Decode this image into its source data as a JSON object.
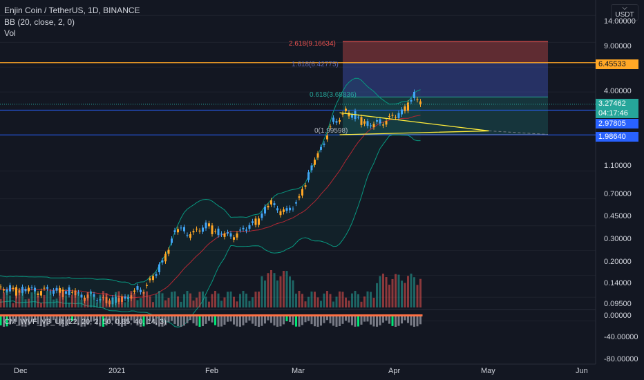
{
  "header": {
    "symbol_line": "Enjin Coin / TetherUS, 1D, BINANCE",
    "bb_line": "BB (20, close, 2, 0)",
    "vol_line": "Vol",
    "currency": "USDT"
  },
  "oscillator": {
    "label": "CM_WVF_V3_Ult (22, 20, 2, 50, 0.85, 40, 14, 3)"
  },
  "fib": {
    "level_2618": "2.618(9.16634)",
    "level_1618": "1.618(6.42775)",
    "level_0618": "0.618(3.68836)",
    "level_0": "0(1.99598)"
  },
  "price_axis": [
    "14.00000",
    "9.00000",
    "6.00000",
    "4.00000",
    "3.27462",
    "04:17:46",
    "2.97805",
    "1.98640",
    "1.10000",
    "0.70000",
    "0.45000",
    "0.30000",
    "0.20000",
    "0.14000",
    "0.09500",
    "0.00000",
    "-40.00000",
    "-80.00000"
  ],
  "price_tags": {
    "resistance": "6.45533",
    "current": "3.27462",
    "countdown": "04:17:46",
    "level_mid": "2.97805",
    "level_low": "1.98640"
  },
  "time_axis": [
    "Dec",
    "2021",
    "Feb",
    "Mar",
    "Apr",
    "May",
    "Jun"
  ],
  "colors": {
    "bg": "#131722",
    "bull": "#26a69a",
    "bear": "#ef5350",
    "bull_candle": "#42a5f5",
    "bear_candle": "#ffa726",
    "bb_band": "#089981",
    "bb_basis": "#b22833",
    "resistance": "#ffa726",
    "support": "#2962ff",
    "triangle": "#ffeb3b"
  },
  "chart_data": {
    "type": "candlestick",
    "title": "Enjin Coin / TetherUS, 1D, BINANCE",
    "scale": "log",
    "ylim": [
      0.085,
      20
    ],
    "x_range": [
      "2020-11-17",
      "2021-06-14"
    ],
    "series": [
      {
        "name": "ENJUSDT",
        "close_approx": [
          [
            "2020-11-20",
            0.16
          ],
          [
            "2020-12-15",
            0.155
          ],
          [
            "2021-01-01",
            0.13
          ],
          [
            "2021-01-10",
            0.16
          ],
          [
            "2021-01-15",
            0.22
          ],
          [
            "2021-01-18",
            0.3
          ],
          [
            "2021-01-20",
            0.42
          ],
          [
            "2021-01-26",
            0.4
          ],
          [
            "2021-01-31",
            0.45
          ],
          [
            "2021-02-05",
            0.38
          ],
          [
            "2021-02-10",
            0.4
          ],
          [
            "2021-02-16",
            0.5
          ],
          [
            "2021-02-20",
            0.65
          ],
          [
            "2021-02-25",
            0.55
          ],
          [
            "2021-03-01",
            0.7
          ],
          [
            "2021-03-04",
            1.0
          ],
          [
            "2021-03-08",
            1.6
          ],
          [
            "2021-03-12",
            2.4
          ],
          [
            "2021-03-16",
            2.9
          ],
          [
            "2021-03-20",
            2.6
          ],
          [
            "2021-03-25",
            2.3
          ],
          [
            "2021-03-30",
            2.6
          ],
          [
            "2021-04-03",
            2.8
          ],
          [
            "2021-04-07",
            3.8
          ],
          [
            "2021-04-09",
            3.27462
          ]
        ]
      },
      {
        "name": "BB",
        "params": "BB (20, close, 2, 0)"
      },
      {
        "name": "Vol"
      },
      {
        "name": "CM_WVF_V3_Ult",
        "params": "22, 20, 2, 50, 0.85, 40, 14, 3"
      }
    ],
    "levels": [
      {
        "price": 9.16634,
        "label": "2.618(9.16634)"
      },
      {
        "price": 6.42775,
        "label": "1.618(6.42775)"
      },
      {
        "price": 3.68836,
        "label": "0.618(3.68836)"
      },
      {
        "price": 1.99598,
        "label": "0(1.99598)"
      }
    ],
    "horizontal_lines": [
      6.45533,
      2.97805,
      1.9864
    ],
    "y_ticks": [
      14,
      9,
      6,
      4,
      1.1,
      0.7,
      0.45,
      0.3,
      0.2,
      0.14,
      0.095
    ],
    "x_ticks": [
      "Dec",
      "2021",
      "Feb",
      "Mar",
      "Apr",
      "May",
      "Jun"
    ]
  }
}
